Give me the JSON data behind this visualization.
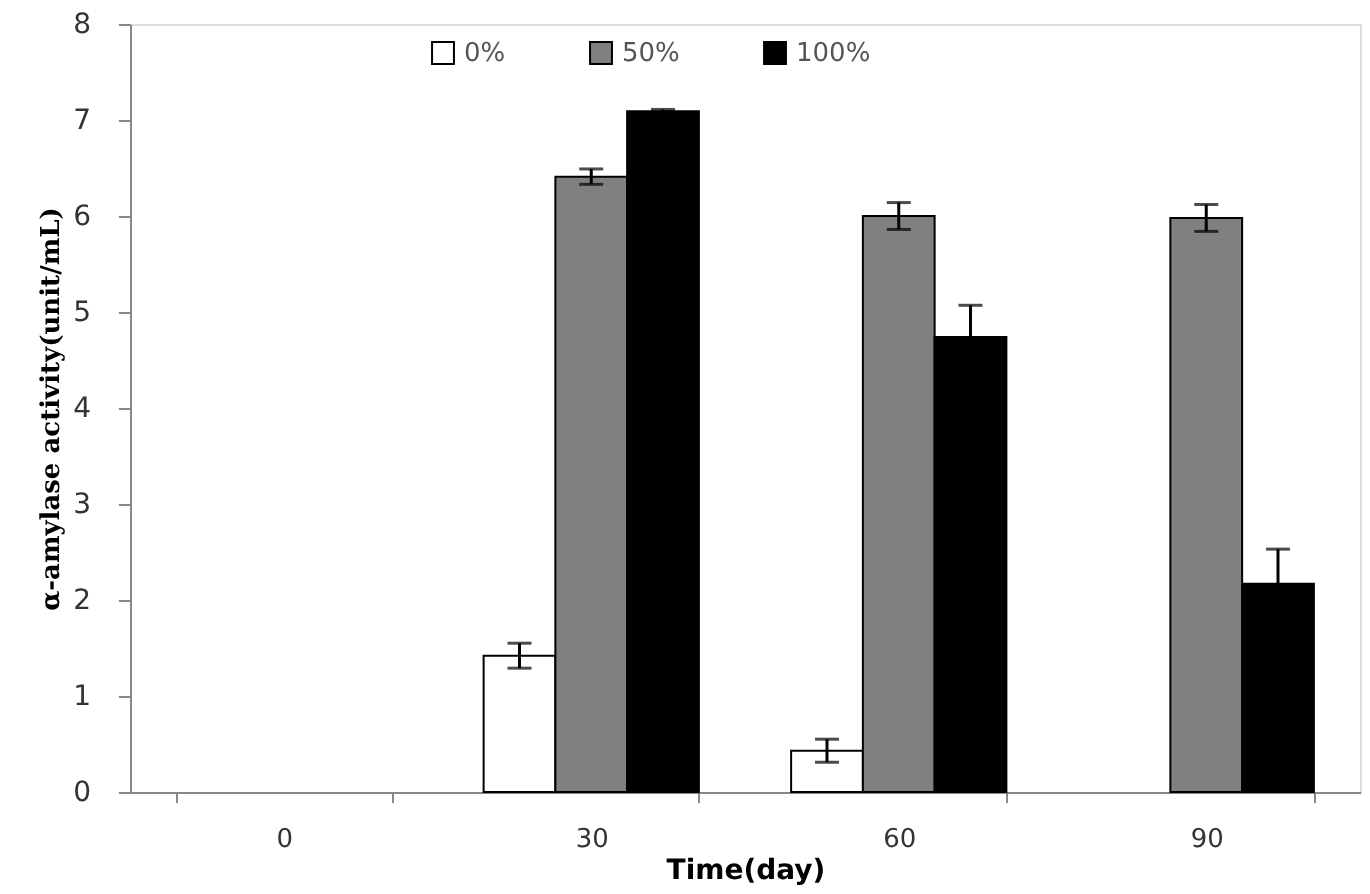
{
  "chart_data": {
    "type": "bar",
    "xlabel": "Time(day)",
    "ylabel": "α-amylase activity(unit/mL)",
    "categories": [
      "0",
      "30",
      "60",
      "90"
    ],
    "series": [
      {
        "name": "0%",
        "color": "#ffffff",
        "values": [
          null,
          1.42,
          0.43,
          null
        ],
        "errors": [
          null,
          0.13,
          0.12,
          null
        ]
      },
      {
        "name": "50%",
        "color": "#808080",
        "values": [
          null,
          6.41,
          6.0,
          5.98
        ],
        "errors": [
          null,
          0.08,
          0.14,
          0.14
        ]
      },
      {
        "name": "100%",
        "color": "#000000",
        "values": [
          null,
          7.09,
          4.74,
          2.17
        ],
        "errors": [
          null,
          0.02,
          0.33,
          0.36
        ]
      }
    ],
    "ylim": [
      0,
      8
    ],
    "yticks": [
      0,
      1,
      2,
      3,
      4,
      5,
      6,
      7,
      8
    ],
    "grid": false,
    "legend": "top"
  }
}
